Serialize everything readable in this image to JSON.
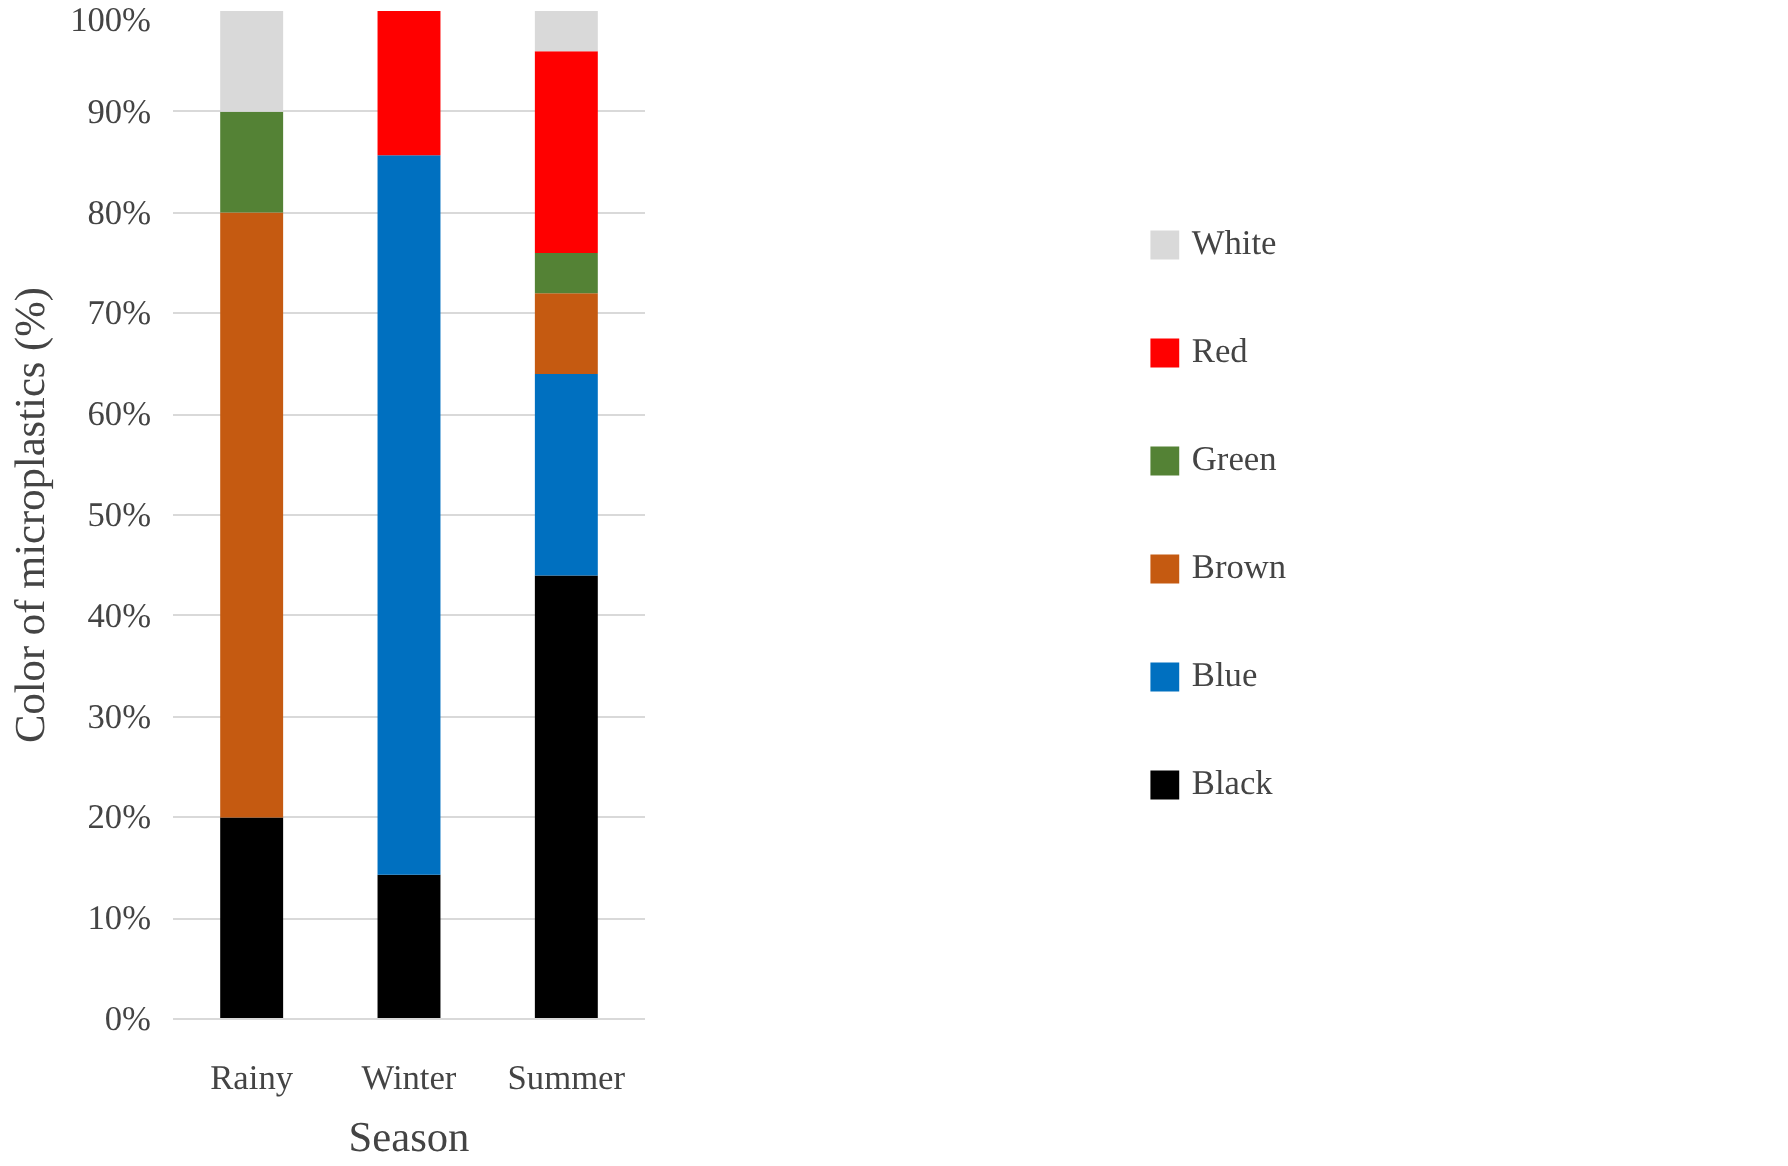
{
  "chart_data": {
    "type": "bar",
    "stacked": true,
    "xlabel": "Season",
    "ylabel": "Color of microplastics (%)",
    "categories": [
      "Rainy",
      "Winter",
      "Summer"
    ],
    "series": [
      {
        "name": "Black",
        "color": "#000000",
        "values": [
          20,
          14.3,
          44
        ]
      },
      {
        "name": "Blue",
        "color": "#0070c0",
        "values": [
          0,
          71.4,
          20
        ]
      },
      {
        "name": "Brown",
        "color": "#c55a11",
        "values": [
          60,
          0,
          8
        ]
      },
      {
        "name": "Green",
        "color": "#548235",
        "values": [
          10,
          0,
          4
        ]
      },
      {
        "name": "Red",
        "color": "#ff0000",
        "values": [
          0,
          14.3,
          20
        ]
      },
      {
        "name": "White",
        "color": "#d9d9d9",
        "values": [
          10,
          0,
          4
        ]
      }
    ],
    "ylim": [
      0,
      100
    ],
    "yticks": [
      {
        "value": 0,
        "label": "0%"
      },
      {
        "value": 10,
        "label": "10%"
      },
      {
        "value": 20,
        "label": "20%"
      },
      {
        "value": 30,
        "label": "30%"
      },
      {
        "value": 40,
        "label": "40%"
      },
      {
        "value": 50,
        "label": "50%"
      },
      {
        "value": 60,
        "label": "60%"
      },
      {
        "value": 70,
        "label": "70%"
      },
      {
        "value": 80,
        "label": "80%"
      },
      {
        "value": 90,
        "label": "90%"
      },
      {
        "value": 100,
        "label": "100%"
      }
    ],
    "grid": "y",
    "legend": "right"
  }
}
